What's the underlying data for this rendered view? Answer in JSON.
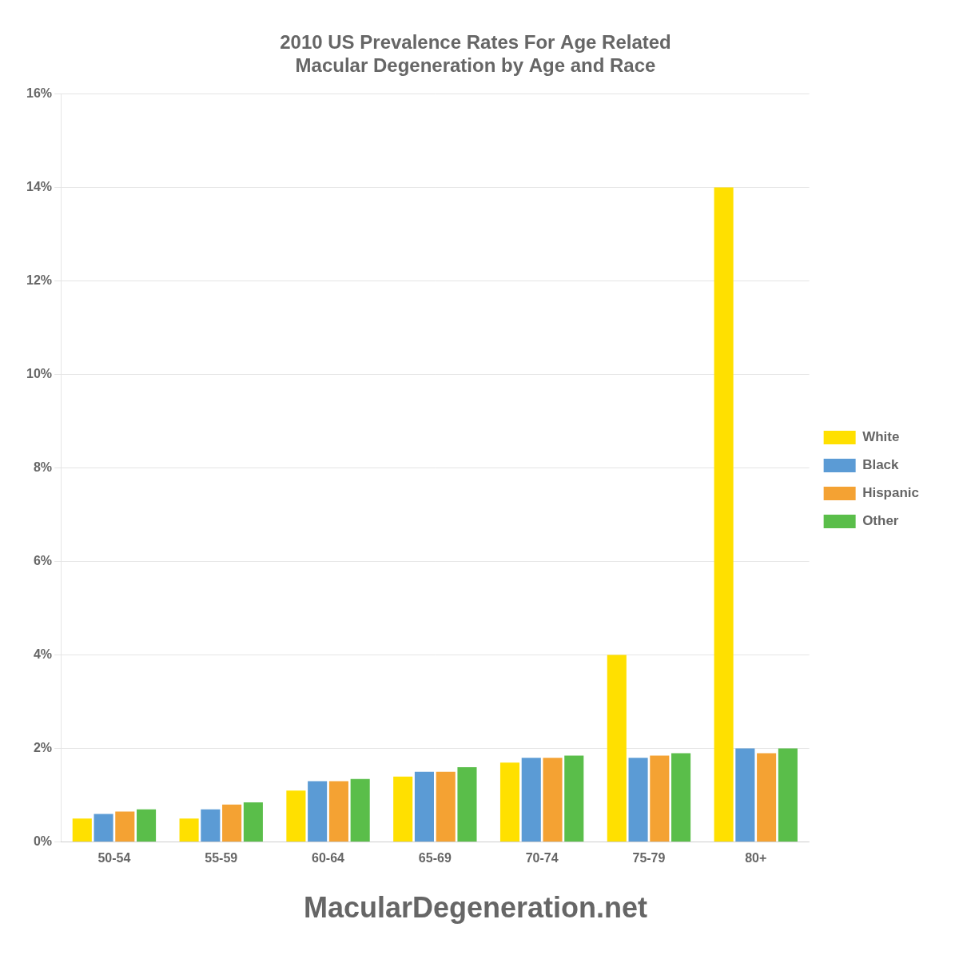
{
  "chart_data": {
    "type": "bar",
    "title": "2010 US Prevalence Rates For Age Related\nMacular Degeneration by Age and Race",
    "categories": [
      "50-54",
      "55-59",
      "60-64",
      "65-69",
      "70-74",
      "75-79",
      "80+"
    ],
    "series": [
      {
        "name": "White",
        "color": "#FFE000",
        "values": [
          0.5,
          0.5,
          1.1,
          1.4,
          1.7,
          4.0,
          14.0
        ]
      },
      {
        "name": "Black",
        "color": "#5B9BD5",
        "values": [
          0.6,
          0.7,
          1.3,
          1.5,
          1.8,
          1.8,
          2.0
        ]
      },
      {
        "name": "Hispanic",
        "color": "#F4A233",
        "values": [
          0.65,
          0.8,
          1.3,
          1.5,
          1.8,
          1.85,
          1.9
        ]
      },
      {
        "name": "Other",
        "color": "#5ABE4A",
        "values": [
          0.7,
          0.85,
          1.35,
          1.6,
          1.85,
          1.9,
          2.0
        ]
      }
    ],
    "ylim": [
      0,
      16
    ],
    "yticks": [
      {
        "value": 0,
        "label": "0%"
      },
      {
        "value": 2,
        "label": "2%"
      },
      {
        "value": 4,
        "label": "4%"
      },
      {
        "value": 6,
        "label": "6%"
      },
      {
        "value": 8,
        "label": "8%"
      },
      {
        "value": 10,
        "label": "10%"
      },
      {
        "value": 12,
        "label": "12%"
      },
      {
        "value": 14,
        "label": "14%"
      },
      {
        "value": 16,
        "label": "16%"
      }
    ],
    "grid": true,
    "legend": "right",
    "annotations": [
      "MacularDegeneration.net"
    ]
  }
}
